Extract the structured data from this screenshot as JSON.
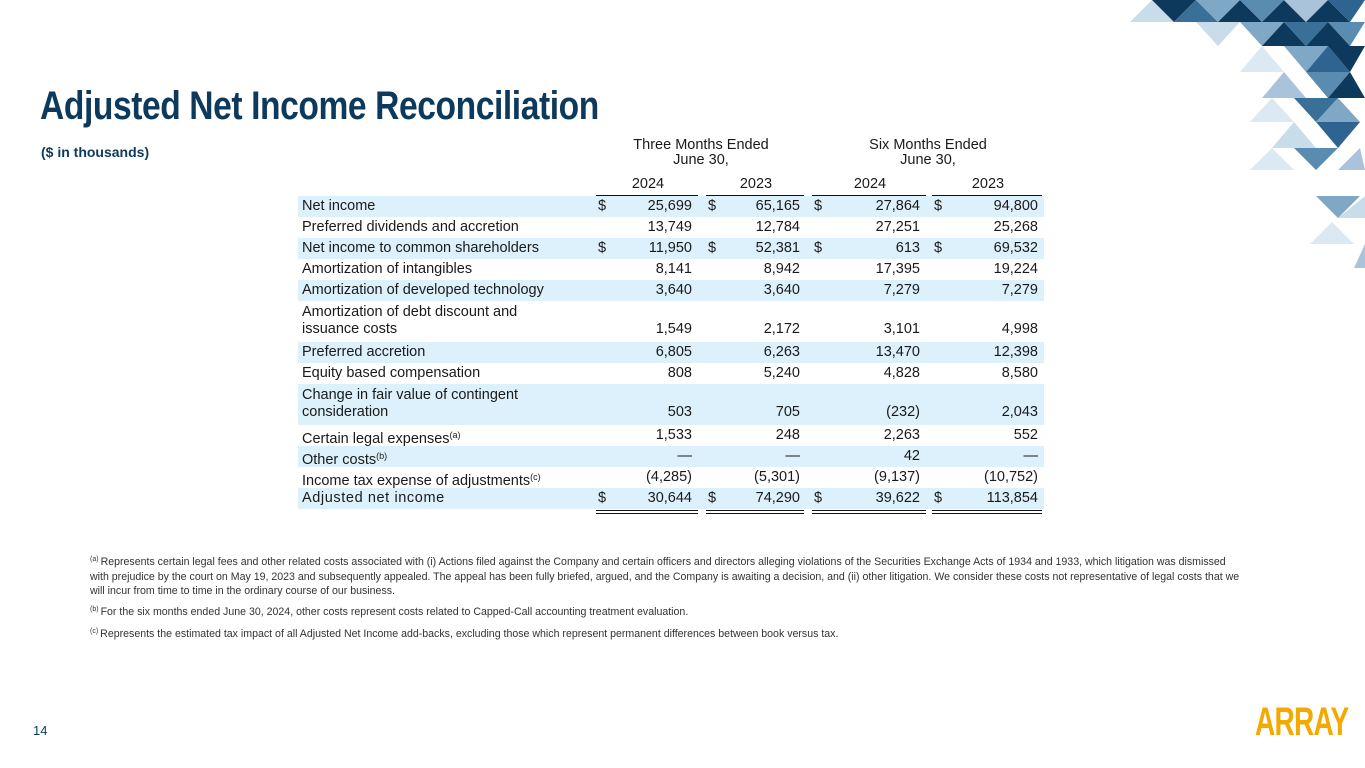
{
  "title": "Adjusted Net Income Reconciliation",
  "subtitle": "($ in thousands)",
  "table": {
    "group_headers": [
      {
        "line1": "Three Months Ended",
        "line2": "June 30,"
      },
      {
        "line1": "Six Months Ended",
        "line2": "June 30,"
      }
    ],
    "years": [
      "2024",
      "2023",
      "2024",
      "2023"
    ],
    "currency": "$",
    "rows": [
      {
        "label": "Net income",
        "values": [
          "25,699",
          "65,165",
          "27,864",
          "94,800"
        ],
        "shaded": true,
        "dollar": true
      },
      {
        "label": "Preferred dividends and accretion",
        "values": [
          "13,749",
          "12,784",
          "27,251",
          "25,268"
        ],
        "rule_below": "single"
      },
      {
        "label": "Net income to common shareholders",
        "values": [
          "11,950",
          "52,381",
          "613",
          "69,532"
        ],
        "shaded": true,
        "dollar": true
      },
      {
        "label": "Amortization of intangibles",
        "values": [
          "8,141",
          "8,942",
          "17,395",
          "19,224"
        ]
      },
      {
        "label": "Amortization of developed technology",
        "values": [
          "3,640",
          "3,640",
          "7,279",
          "7,279"
        ],
        "shaded": true
      },
      {
        "label": "Amortization of debt discount and issuance costs",
        "values": [
          "1,549",
          "2,172",
          "3,101",
          "4,998"
        ]
      },
      {
        "label": "Preferred accretion",
        "values": [
          "6,805",
          "6,263",
          "13,470",
          "12,398"
        ],
        "shaded": true
      },
      {
        "label": "Equity based compensation",
        "values": [
          "808",
          "5,240",
          "4,828",
          "8,580"
        ]
      },
      {
        "label": "Change in fair value of contingent consideration",
        "values": [
          "503",
          "705",
          "(232)",
          "2,043"
        ],
        "shaded": true
      },
      {
        "label": "Certain legal expenses",
        "note": "(a)",
        "values": [
          "1,533",
          "248",
          "2,263",
          "552"
        ]
      },
      {
        "label": "Other costs",
        "note": "(b)",
        "values": [
          "—",
          "—",
          "42",
          "—"
        ],
        "shaded": true
      },
      {
        "label": "Income tax expense of adjustments",
        "note": "(c)",
        "values": [
          "(4,285)",
          "(5,301)",
          "(9,137)",
          "(10,752)"
        ],
        "rule_below": "single"
      },
      {
        "label": "Adjusted net income",
        "values": [
          "30,644",
          "74,290",
          "39,622",
          "113,854"
        ],
        "shaded": true,
        "dollar": true,
        "rule_below": "double"
      }
    ]
  },
  "footnotes": [
    {
      "marker": "(a)",
      "text": "Represents certain legal fees and other related costs associated with (i) Actions filed against the Company and certain officers and directors alleging violations of the Securities Exchange Acts of 1934 and 1933, which litigation was dismissed with prejudice by the court on May 19, 2023 and subsequently appealed. The appeal has been fully briefed, argued, and the Company is awaiting a decision, and (ii) other litigation. We consider these costs not representative of legal costs that we will incur from time to time in the ordinary course of our business."
    },
    {
      "marker": "(b)",
      "text": "For the six months ended June 30, 2024, other costs represent costs related to Capped-Call accounting treatment evaluation."
    },
    {
      "marker": "(c)",
      "text": "Represents the estimated tax impact of all Adjusted Net Income add-backs, excluding those which represent permanent differences between book versus tax."
    }
  ],
  "page_number": "14",
  "logo": "ARRAY"
}
